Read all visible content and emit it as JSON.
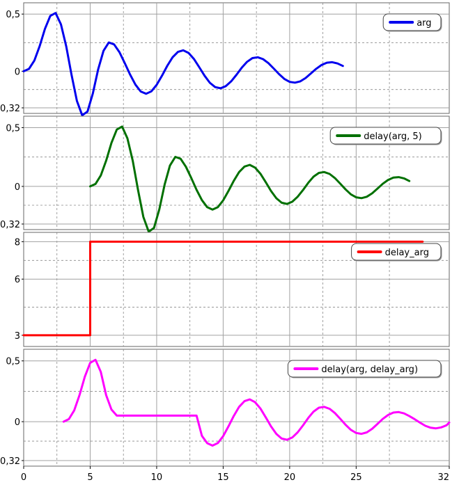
{
  "chart_data": [
    {
      "type": "line",
      "xlim": [
        0,
        32
      ],
      "ylim": [
        -0.32,
        0.55
      ],
      "yticks": [
        {
          "v": 0.5,
          "label": "0,5"
        },
        {
          "v": 0,
          "label": "0"
        },
        {
          "v": -0.32,
          "label": "-0,32"
        }
      ],
      "grid": true,
      "legend_position": "top-right",
      "series": [
        {
          "name": "arg",
          "color": "#0000ee",
          "x": [
            0,
            0.4,
            0.8,
            1.2,
            1.6,
            2,
            2.4,
            2.8,
            3.2,
            3.6,
            4,
            4.4,
            4.8,
            5.2,
            5.6,
            6,
            6.4,
            6.8,
            7.2,
            7.6,
            8,
            8.4,
            8.8,
            9.2,
            9.6,
            10,
            10.4,
            10.8,
            11.2,
            11.6,
            12,
            12.4,
            12.8,
            13.2,
            13.6,
            14,
            14.4,
            14.8,
            15.2,
            15.6,
            16,
            16.4,
            16.8,
            17.2,
            17.6,
            18,
            18.4,
            18.8,
            19.2,
            19.6,
            20,
            20.4,
            20.8,
            21.2,
            21.6,
            22,
            22.4,
            22.8,
            23.2,
            23.6,
            24
          ],
          "y": [
            0.0,
            0.021,
            0.093,
            0.219,
            0.37,
            0.484,
            0.509,
            0.41,
            0.218,
            -0.031,
            -0.259,
            -0.385,
            -0.353,
            -0.194,
            0.016,
            0.178,
            0.251,
            0.235,
            0.167,
            0.072,
            -0.029,
            -0.117,
            -0.177,
            -0.197,
            -0.176,
            -0.119,
            -0.039,
            0.048,
            0.122,
            0.169,
            0.183,
            0.16,
            0.108,
            0.036,
            -0.039,
            -0.101,
            -0.139,
            -0.149,
            -0.13,
            -0.088,
            -0.031,
            0.031,
            0.083,
            0.115,
            0.122,
            0.106,
            0.071,
            0.024,
            -0.025,
            -0.067,
            -0.093,
            -0.1,
            -0.088,
            -0.059,
            -0.019,
            0.022,
            0.055,
            0.075,
            0.079,
            0.068,
            0.046
          ]
        }
      ]
    },
    {
      "type": "line",
      "xlim": [
        0,
        32
      ],
      "ylim": [
        -0.32,
        0.55
      ],
      "yticks": [
        {
          "v": 0.5,
          "label": "0,5"
        },
        {
          "v": 0,
          "label": "0"
        },
        {
          "v": -0.32,
          "label": "-0,32"
        }
      ],
      "grid": true,
      "legend_position": "top-right",
      "series": [
        {
          "name": "delay(arg, 5)",
          "color": "#007000",
          "x": [
            5,
            5.4,
            5.8,
            6.2,
            6.6,
            7,
            7.4,
            7.8,
            8.2,
            8.6,
            9,
            9.4,
            9.8,
            10.2,
            10.6,
            11,
            11.4,
            11.8,
            12.2,
            12.6,
            13,
            13.4,
            13.8,
            14.2,
            14.6,
            15,
            15.4,
            15.8,
            16.2,
            16.6,
            17,
            17.4,
            17.8,
            18.2,
            18.6,
            19,
            19.4,
            19.8,
            20.2,
            20.6,
            21,
            21.4,
            21.8,
            22.2,
            22.6,
            23,
            23.4,
            23.8,
            24.2,
            24.6,
            25,
            25.4,
            25.8,
            26.2,
            26.6,
            27,
            27.4,
            27.8,
            28.2,
            28.6,
            29
          ],
          "y": [
            0.0,
            0.021,
            0.093,
            0.219,
            0.37,
            0.484,
            0.509,
            0.41,
            0.218,
            -0.031,
            -0.259,
            -0.385,
            -0.353,
            -0.194,
            0.016,
            0.178,
            0.251,
            0.235,
            0.167,
            0.072,
            -0.029,
            -0.117,
            -0.177,
            -0.197,
            -0.176,
            -0.119,
            -0.039,
            0.048,
            0.122,
            0.169,
            0.183,
            0.16,
            0.108,
            0.036,
            -0.039,
            -0.101,
            -0.139,
            -0.149,
            -0.13,
            -0.088,
            -0.031,
            0.031,
            0.083,
            0.115,
            0.122,
            0.106,
            0.071,
            0.024,
            -0.025,
            -0.067,
            -0.093,
            -0.1,
            -0.088,
            -0.059,
            -0.019,
            0.022,
            0.055,
            0.075,
            0.079,
            0.068,
            0.046
          ]
        }
      ]
    },
    {
      "type": "line",
      "xlim": [
        0,
        32
      ],
      "ylim": [
        2.7,
        8.2
      ],
      "yticks": [
        {
          "v": 8,
          "label": "8"
        },
        {
          "v": 6,
          "label": "6"
        },
        {
          "v": 3,
          "label": "3"
        }
      ],
      "grid": true,
      "legend_position": "top-right",
      "series": [
        {
          "name": "delay_arg",
          "color": "#ff0000",
          "x": [
            0,
            5,
            5,
            30
          ],
          "y": [
            3,
            3,
            8,
            8
          ]
        }
      ]
    },
    {
      "type": "line",
      "xlim": [
        0,
        32
      ],
      "ylim": [
        -0.32,
        0.55
      ],
      "yticks": [
        {
          "v": 0.5,
          "label": "0,5"
        },
        {
          "v": 0,
          "label": "0"
        },
        {
          "v": -0.32,
          "label": "-0,32"
        }
      ],
      "xticks": [
        0,
        5,
        10,
        15,
        20,
        25,
        32
      ],
      "grid": true,
      "legend_position": "top-right",
      "series": [
        {
          "name": "delay(arg, delay_arg)",
          "color": "#ff00ff",
          "x": [
            3,
            3.4,
            3.8,
            4.2,
            4.6,
            5,
            5.4,
            5.8,
            6.2,
            6.6,
            7,
            7.4,
            7.8,
            8,
            13,
            13.4,
            13.8,
            14.2,
            14.6,
            15,
            15.4,
            15.8,
            16.2,
            16.6,
            17,
            17.4,
            17.8,
            18.2,
            18.6,
            19,
            19.4,
            19.8,
            20.2,
            20.6,
            21,
            21.4,
            21.8,
            22.2,
            22.6,
            23,
            23.4,
            23.8,
            24.2,
            24.6,
            25,
            25.4,
            25.8,
            26.2,
            26.6,
            27,
            27.4,
            27.8,
            28.2,
            28.6,
            29,
            29.4,
            29.8,
            30.2,
            30.6,
            31,
            31.4,
            31.8,
            32
          ],
          "y": [
            0.0,
            0.021,
            0.093,
            0.219,
            0.37,
            0.484,
            0.509,
            0.41,
            0.218,
            0.1,
            0.05,
            0.05,
            0.05,
            0.05,
            0.05,
            -0.117,
            -0.177,
            -0.197,
            -0.176,
            -0.119,
            -0.039,
            0.048,
            0.122,
            0.169,
            0.183,
            0.16,
            0.108,
            0.036,
            -0.039,
            -0.101,
            -0.139,
            -0.149,
            -0.13,
            -0.088,
            -0.031,
            0.031,
            0.083,
            0.115,
            0.122,
            0.106,
            0.071,
            0.024,
            -0.025,
            -0.067,
            -0.093,
            -0.1,
            -0.088,
            -0.059,
            -0.019,
            0.022,
            0.055,
            0.075,
            0.079,
            0.068,
            0.046,
            0.02,
            -0.008,
            -0.034,
            -0.05,
            -0.055,
            -0.047,
            -0.029,
            -0.007
          ]
        }
      ]
    }
  ]
}
